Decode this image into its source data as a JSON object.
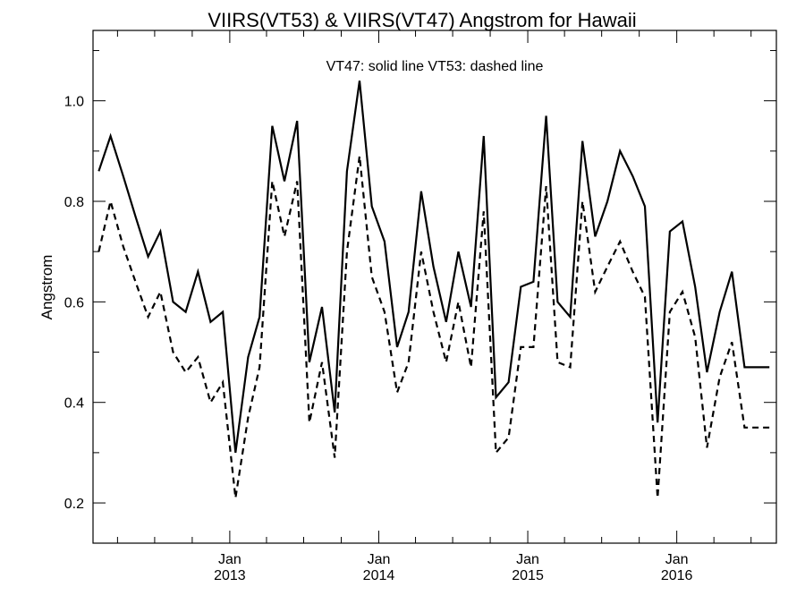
{
  "chart_data": {
    "type": "line",
    "title": "VIIRS(VT53) & VIIRS(VT47)  Angstrom for Hawaii",
    "annotation": "VT47: solid line   VT53: dashed line",
    "xlabel": "",
    "ylabel": "Angstrom",
    "ylim": [
      0.12,
      1.14
    ],
    "yticks": [
      0.2,
      0.4,
      0.6,
      0.8,
      1.0
    ],
    "ytick_labels": [
      "0.2",
      "0.4",
      "0.6",
      "0.8",
      "1.0"
    ],
    "xlim": [
      "2012-02-01",
      "2016-09-01"
    ],
    "xticks": [
      {
        "date": "2013-01-01",
        "month": "Jan",
        "year": "2013"
      },
      {
        "date": "2014-01-01",
        "month": "Jan",
        "year": "2014"
      },
      {
        "date": "2015-01-01",
        "month": "Jan",
        "year": "2015"
      },
      {
        "date": "2016-01-01",
        "month": "Jan",
        "year": "2016"
      }
    ],
    "grid": false,
    "x": [
      "2012-02-15",
      "2012-03-15",
      "2012-04-15",
      "2012-05-15",
      "2012-06-15",
      "2012-07-15",
      "2012-08-15",
      "2012-09-15",
      "2012-10-15",
      "2012-11-15",
      "2012-12-15",
      "2013-01-15",
      "2013-02-15",
      "2013-03-15",
      "2013-04-15",
      "2013-05-15",
      "2013-06-15",
      "2013-07-15",
      "2013-08-15",
      "2013-09-15",
      "2013-10-15",
      "2013-11-15",
      "2013-12-15",
      "2014-01-15",
      "2014-02-15",
      "2014-03-15",
      "2014-04-15",
      "2014-05-15",
      "2014-06-15",
      "2014-07-15",
      "2014-08-15",
      "2014-09-15",
      "2014-10-15",
      "2014-11-15",
      "2014-12-15",
      "2015-01-15",
      "2015-02-15",
      "2015-03-15",
      "2015-04-15",
      "2015-05-15",
      "2015-06-15",
      "2015-07-15",
      "2015-08-15",
      "2015-09-15",
      "2015-10-15",
      "2015-11-15",
      "2015-12-15",
      "2016-01-15",
      "2016-02-15",
      "2016-03-15",
      "2016-04-15",
      "2016-05-15",
      "2016-06-15",
      "2016-07-15",
      "2016-08-15"
    ],
    "series": [
      {
        "name": "VT47",
        "style": "solid",
        "color": "#000000",
        "values": [
          0.86,
          0.93,
          0.85,
          0.77,
          0.69,
          0.74,
          0.6,
          0.58,
          0.66,
          0.56,
          0.58,
          0.3,
          0.49,
          0.57,
          0.95,
          0.84,
          0.96,
          0.48,
          0.59,
          0.38,
          0.86,
          1.04,
          0.79,
          0.72,
          0.51,
          0.58,
          0.82,
          0.67,
          0.56,
          0.7,
          0.59,
          0.93,
          0.41,
          0.44,
          0.63,
          0.64,
          0.97,
          0.6,
          0.57,
          0.92,
          0.73,
          0.8,
          0.9,
          0.85,
          0.79,
          0.36,
          0.74,
          0.76,
          0.63,
          0.46,
          0.58,
          0.66,
          0.47,
          0.47,
          0.47
        ]
      },
      {
        "name": "VT53",
        "style": "dashed",
        "color": "#000000",
        "values": [
          0.7,
          0.8,
          0.71,
          0.64,
          0.57,
          0.62,
          0.5,
          0.46,
          0.49,
          0.4,
          0.44,
          0.21,
          0.37,
          0.47,
          0.84,
          0.73,
          0.84,
          0.36,
          0.48,
          0.29,
          0.7,
          0.89,
          0.65,
          0.58,
          0.42,
          0.48,
          0.7,
          0.58,
          0.48,
          0.6,
          0.47,
          0.78,
          0.3,
          0.33,
          0.51,
          0.51,
          0.83,
          0.48,
          0.47,
          0.8,
          0.62,
          0.67,
          0.72,
          0.66,
          0.61,
          0.21,
          0.58,
          0.62,
          0.53,
          0.31,
          0.45,
          0.52,
          0.35,
          0.35,
          0.35
        ]
      }
    ]
  }
}
